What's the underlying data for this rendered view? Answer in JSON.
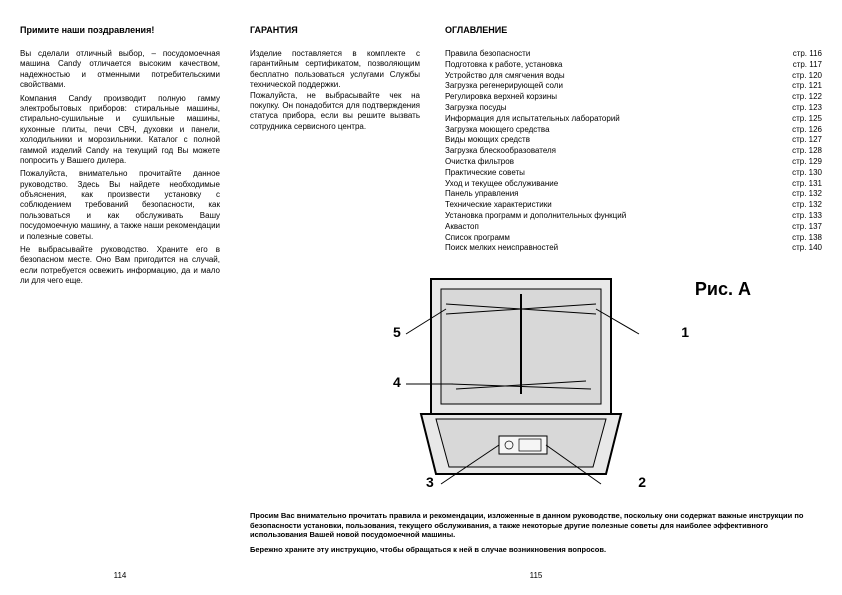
{
  "left": {
    "heading": "Примите наши поздравления!",
    "paragraphs": [
      "Вы сделали отличный выбор, – посудомоечная машина Candy отличается высоким качеством, надежностью и отменными потребительскими свойствами.",
      "Компания Candy производит полную гамму электробытовых приборов: стиральные машины, стирально-сушильные и сушильные машины, кухонные плиты, печи СВЧ, духовки и панели, холодильники и морозильники. Каталог с полной гаммой изделий Candy на текущий год Вы можете попросить у Вашего дилера.",
      "Пожалуйста, внимательно прочитайте данное руководство. Здесь Вы найдете необходимые объяснения, как произвести установку с соблюдением требований безопасности, как пользоваться и как обслуживать Вашу посудомоечную машину, а также наши рекомендации и полезные советы.",
      "Не выбрасывайте руководство. Храните его в безопасном месте. Оно Вам пригодится на случай, если потребуется освежить информацию, да и мало ли для чего еще."
    ],
    "pageNum": "114"
  },
  "warranty": {
    "heading": "ГАРАНТИЯ",
    "text": "Изделие поставляется в комплекте с гарантийным сертификатом, позволяющим бесплатно пользоваться услугами Службы технической поддержки.\nПожалуйста, не выбрасывайте чек на покупку. Он понадобится для подтверждения статуса прибора, если вы решите вызвать сотрудника сервисного центра."
  },
  "toc": {
    "heading": "ОГЛАВЛЕНИЕ",
    "items": [
      {
        "label": "Правила безопасности",
        "page": "стр. 116"
      },
      {
        "label": "Подготовка к работе, установка",
        "page": "стр. 117"
      },
      {
        "label": "Устройство для смягчения воды",
        "page": "стр. 120"
      },
      {
        "label": "Загрузка регенерирующей соли",
        "page": "стр. 121"
      },
      {
        "label": "Регулировка верхней корзины",
        "page": "стр. 122"
      },
      {
        "label": "Загрузка посуды",
        "page": "стр. 123"
      },
      {
        "label": "Информация для испытательных лабораторий",
        "page": "стр. 125"
      },
      {
        "label": "Загрузка моющего средства",
        "page": "стр. 126"
      },
      {
        "label": "Виды моющих средств",
        "page": "стр. 127"
      },
      {
        "label": "Загрузка блескообразователя",
        "page": "стр. 128"
      },
      {
        "label": "Очистка фильтров",
        "page": "стр. 129"
      },
      {
        "label": "Практические советы",
        "page": "стр. 130"
      },
      {
        "label": "Уход и текущее обслуживание",
        "page": "стр. 131"
      },
      {
        "label": "Панель управления",
        "page": "стр. 132"
      },
      {
        "label": "Технические характеристики",
        "page": "стр. 132"
      },
      {
        "label": "Установка программ и дополнительных функций",
        "page": "стр. 133"
      },
      {
        "label": "Аквастоп",
        "page": "стр. 137"
      },
      {
        "label": "Список программ",
        "page": "стр. 138"
      },
      {
        "label": "Поиск мелких неисправностей",
        "page": "стр. 140"
      }
    ]
  },
  "figure": {
    "title": "Рис. A",
    "callouts": [
      "1",
      "2",
      "3",
      "4",
      "5"
    ]
  },
  "bottom": {
    "p1": "Просим Вас внимательно прочитать правила и рекомендации, изложенные в данном руководстве, поскольку они содержат важные инструкции по безопасности установки, пользования, текущего обслуживания, а также некоторые другие полезные советы для наиболее эффективного использования Вашей новой посудомоечной машины.",
    "p2": "Бережно храните эту инструкцию, чтобы обращаться к ней в случае возникновения вопросов.",
    "pageNum": "115"
  },
  "colors": {
    "text": "#000000",
    "bg": "#ffffff",
    "figStroke": "#000000",
    "figGrey": "#d8d8d8"
  }
}
